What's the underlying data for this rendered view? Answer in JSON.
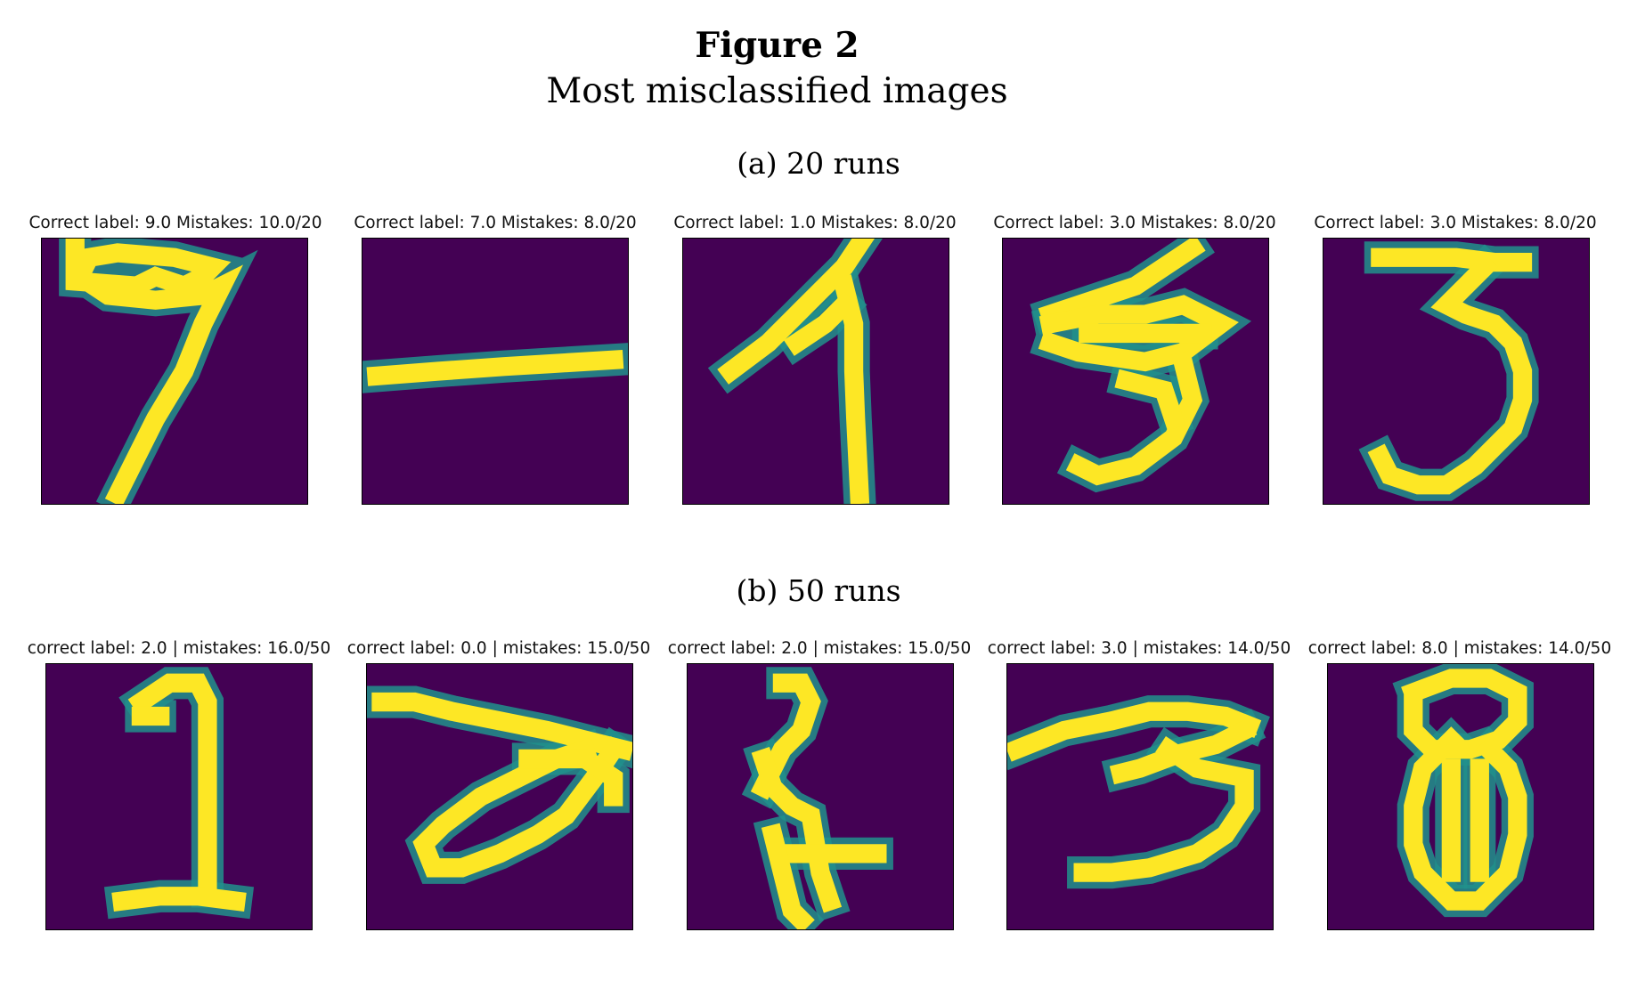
{
  "figure": {
    "title": "Figure 2",
    "subtitle": "Most misclassified images"
  },
  "panels": [
    {
      "caption": "(a) 20 runs",
      "images": [
        {
          "title": "Correct label: 9.0 Mistakes: 10.0/20"
        },
        {
          "title": "Correct label: 7.0 Mistakes: 8.0/20"
        },
        {
          "title": "Correct label: 1.0 Mistakes: 8.0/20"
        },
        {
          "title": "Correct label: 3.0 Mistakes: 8.0/20"
        },
        {
          "title": "Correct label: 3.0 Mistakes: 8.0/20"
        }
      ]
    },
    {
      "caption": "(b) 50 runs",
      "images": [
        {
          "title": "correct label: 2.0 | mistakes: 16.0/50"
        },
        {
          "title": "correct label: 0.0 | mistakes: 15.0/50"
        },
        {
          "title": "correct label: 2.0 | mistakes: 15.0/50"
        },
        {
          "title": "correct label: 3.0 | mistakes: 14.0/50"
        },
        {
          "title": "correct label: 8.0 | mistakes: 14.0/50"
        }
      ]
    }
  ],
  "colormap": {
    "name": "viridis",
    "background": "#440154",
    "mid": "#21918c",
    "high": "#fde725"
  }
}
